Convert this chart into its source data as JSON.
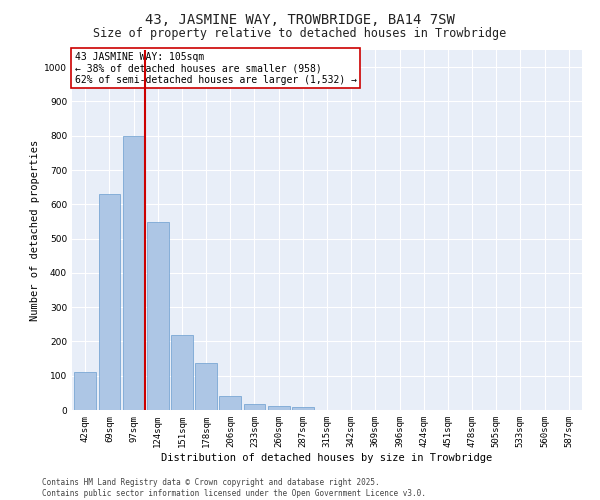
{
  "title": "43, JASMINE WAY, TROWBRIDGE, BA14 7SW",
  "subtitle": "Size of property relative to detached houses in Trowbridge",
  "xlabel": "Distribution of detached houses by size in Trowbridge",
  "ylabel": "Number of detached properties",
  "categories": [
    "42sqm",
    "69sqm",
    "97sqm",
    "124sqm",
    "151sqm",
    "178sqm",
    "206sqm",
    "233sqm",
    "260sqm",
    "287sqm",
    "315sqm",
    "342sqm",
    "369sqm",
    "396sqm",
    "424sqm",
    "451sqm",
    "478sqm",
    "505sqm",
    "533sqm",
    "560sqm",
    "587sqm"
  ],
  "values": [
    110,
    630,
    800,
    548,
    220,
    138,
    42,
    17,
    12,
    8,
    0,
    0,
    0,
    0,
    0,
    0,
    0,
    0,
    0,
    0,
    0
  ],
  "bar_color": "#adc6e5",
  "bar_edge_color": "#6a9ecf",
  "vline_color": "#cc0000",
  "vline_xindex": 2,
  "annotation_line1": "43 JASMINE WAY: 105sqm",
  "annotation_line2": "← 38% of detached houses are smaller (958)",
  "annotation_line3": "62% of semi-detached houses are larger (1,532) →",
  "annotation_box_edgecolor": "#cc0000",
  "annotation_bg": "#ffffff",
  "ylim": [
    0,
    1050
  ],
  "yticks": [
    0,
    100,
    200,
    300,
    400,
    500,
    600,
    700,
    800,
    900,
    1000
  ],
  "bg_color": "#e8eef8",
  "grid_color": "#ffffff",
  "footer_line1": "Contains HM Land Registry data © Crown copyright and database right 2025.",
  "footer_line2": "Contains public sector information licensed under the Open Government Licence v3.0.",
  "title_fontsize": 10,
  "subtitle_fontsize": 8.5,
  "xlabel_fontsize": 7.5,
  "ylabel_fontsize": 7.5,
  "tick_fontsize": 6.5,
  "annotation_fontsize": 7,
  "footer_fontsize": 5.5
}
